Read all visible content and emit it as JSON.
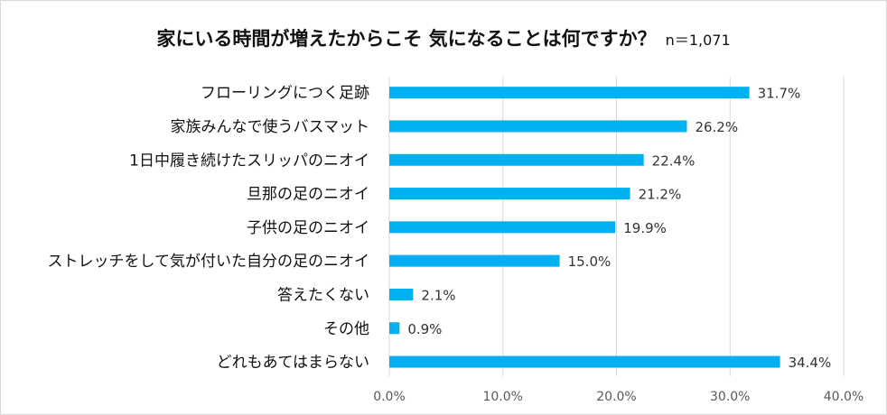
{
  "chart_data": {
    "type": "bar",
    "orientation": "horizontal",
    "title": "家にいる時間が増えたからこそ 気になることは何ですか？",
    "subtitle": "n＝1,071",
    "categories": [
      "フローリングにつく足跡",
      "家族みんなで使うバスマット",
      "1日中履き続けたスリッパのニオイ",
      "旦那の足のニオイ",
      "子供の足のニオイ",
      "ストレッチをして気が付いた自分の足のニオイ",
      "答えたくない",
      "その他",
      "どれもあてはまらない"
    ],
    "values": [
      31.7,
      26.2,
      22.4,
      21.2,
      19.9,
      15.0,
      2.1,
      0.9,
      34.4
    ],
    "value_labels": [
      "31.7%",
      "26.2%",
      "22.4%",
      "21.2%",
      "19.9%",
      "15.0%",
      "2.1%",
      "0.9%",
      "34.4%"
    ],
    "xlim": [
      0,
      40
    ],
    "x_ticks": [
      0,
      10,
      20,
      30,
      40
    ],
    "x_tick_labels": [
      "0.0%",
      "10.0%",
      "20.0%",
      "30.0%",
      "40.0%"
    ],
    "bar_color": "#00b0f0",
    "grid": true
  }
}
